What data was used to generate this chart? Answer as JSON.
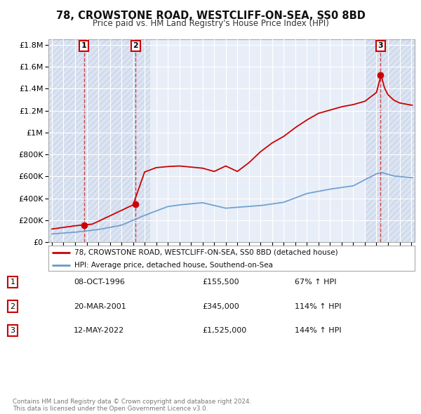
{
  "title": "78, CROWSTONE ROAD, WESTCLIFF-ON-SEA, SS0 8BD",
  "subtitle": "Price paid vs. HM Land Registry's House Price Index (HPI)",
  "sales": [
    {
      "date": 1996.77,
      "price": 155500,
      "label": "1"
    },
    {
      "date": 2001.22,
      "price": 345000,
      "label": "2"
    },
    {
      "date": 2022.36,
      "price": 1525000,
      "label": "3"
    }
  ],
  "sale_labels_table": [
    {
      "num": "1",
      "date": "08-OCT-1996",
      "price": "£155,500",
      "pct": "67% ↑ HPI"
    },
    {
      "num": "2",
      "date": "20-MAR-2001",
      "price": "£345,000",
      "pct": "114% ↑ HPI"
    },
    {
      "num": "3",
      "date": "12-MAY-2022",
      "price": "£1,525,000",
      "pct": "144% ↑ HPI"
    }
  ],
  "legend_entry1": "78, CROWSTONE ROAD, WESTCLIFF-ON-SEA, SS0 8BD (detached house)",
  "legend_entry2": "HPI: Average price, detached house, Southend-on-Sea",
  "footer": "Contains HM Land Registry data © Crown copyright and database right 2024.\nThis data is licensed under the Open Government Licence v3.0.",
  "price_color": "#cc0000",
  "hpi_color": "#6699cc",
  "background_color": "#ffffff",
  "plot_bg_color": "#e8eef8",
  "hatch_bg_color": "#dde4f0",
  "grid_color": "#ffffff",
  "ylim": [
    0,
    1850000
  ],
  "xlim": [
    1993.7,
    2025.3
  ]
}
